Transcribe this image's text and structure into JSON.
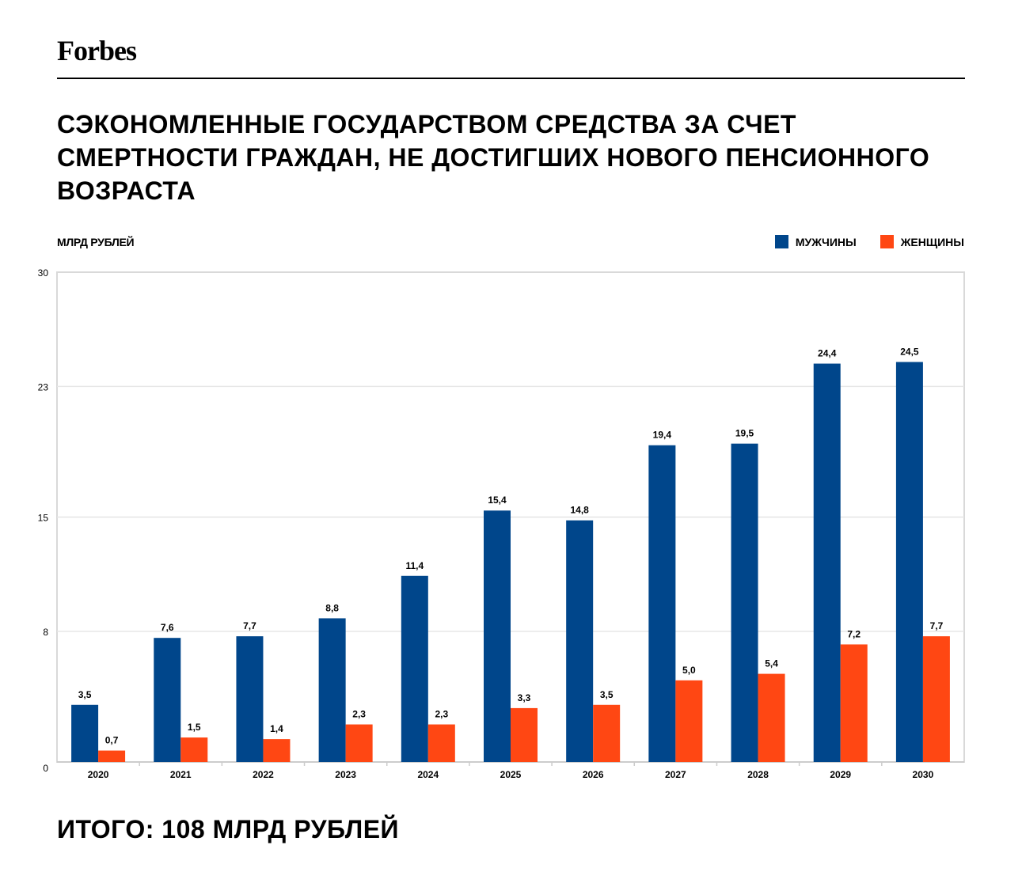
{
  "header": {
    "logo": "Forbes",
    "title": "СЭКОНОМЛЕННЫЕ ГОСУДАРСТВОМ СРЕДСТВА ЗА СЧЕТ СМЕРТНОСТИ ГРАЖДАН, НЕ ДОСТИГШИХ НОВОГО ПЕНСИОННОГО ВОЗРАСТА"
  },
  "footer": {
    "total": "ИТОГО: 108 МЛРД РУБЛЕЙ"
  },
  "colors": {
    "men": "#00468B",
    "women": "#FF4713"
  },
  "chart_data": {
    "type": "bar",
    "ylabel": "МЛРД РУБЛЕЙ",
    "ylim": [
      0,
      30
    ],
    "yticks": [
      0,
      8,
      15,
      23,
      30
    ],
    "grid": true,
    "legend_position": "top-right",
    "categories": [
      "2020",
      "2021",
      "2022",
      "2023",
      "2024",
      "2025",
      "2026",
      "2027",
      "2028",
      "2029",
      "2030"
    ],
    "series": [
      {
        "name": "МУЖЧИНЫ",
        "values": [
          3.5,
          7.6,
          7.7,
          8.8,
          11.4,
          15.4,
          14.8,
          19.4,
          19.5,
          24.4,
          24.5
        ],
        "labels": [
          "3,5",
          "7,6",
          "7,7",
          "8,8",
          "11,4",
          "15,4",
          "14,8",
          "19,4",
          "19,5",
          "24,4",
          "24,5"
        ]
      },
      {
        "name": "ЖЕНЩИНЫ",
        "values": [
          0.7,
          1.5,
          1.4,
          2.3,
          2.3,
          3.3,
          3.5,
          5.0,
          5.4,
          7.2,
          7.7
        ],
        "labels": [
          "0,7",
          "1,5",
          "1,4",
          "2,3",
          "2,3",
          "3,3",
          "3,5",
          "5,0",
          "5,4",
          "7,2",
          "7,7"
        ]
      }
    ]
  }
}
